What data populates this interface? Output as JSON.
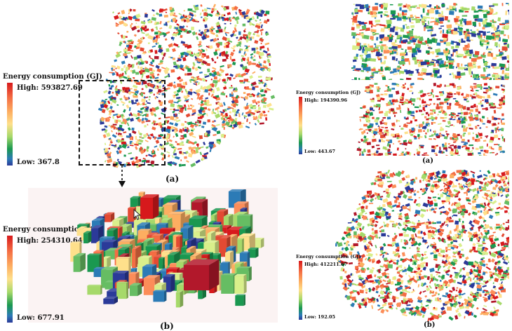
{
  "legends": {
    "a_left": {
      "title": "Energy consumption (GJ)",
      "high": "High: 593827.69",
      "low": "Low: 367.8"
    },
    "b_left": {
      "title": "Energy consumption (GJ)",
      "high": "High: 254310.64",
      "low": "Low: 677.91"
    },
    "a_right": {
      "title": "Energy consumption (GJ)",
      "high": "High: 194390.96",
      "low": "Low: 443.67"
    },
    "b_right": {
      "title": "Energy consumption (GJ)",
      "high": "High: 412211.67",
      "low": "Low: 192.05"
    }
  },
  "captions": {
    "left_a": "(a)",
    "left_b": "(b)",
    "right_a": "(a)",
    "right_b": "(b)"
  },
  "colors": {
    "high": "#d7191c",
    "mid": "#fee08b",
    "low": "#2b3a99"
  }
}
